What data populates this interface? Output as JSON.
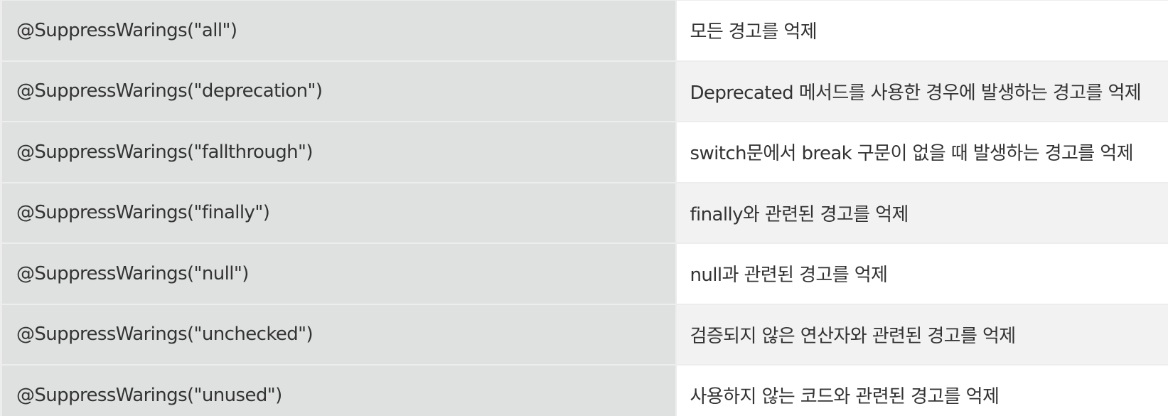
{
  "table": {
    "rows": [
      {
        "annotation": "@SuppressWarings(\"all\")",
        "description": "모든 경고를 억제"
      },
      {
        "annotation": "@SuppressWarings(\"deprecation\")",
        "description": "Deprecated 메서드를 사용한 경우에 발생하는 경고를 억제"
      },
      {
        "annotation": "@SuppressWarings(\"fallthrough\")",
        "description": "switch문에서 break 구문이 없을 때 발생하는 경고를 억제"
      },
      {
        "annotation": "@SuppressWarings(\"finally\")",
        "description": "finally와 관련된 경고를 억제"
      },
      {
        "annotation": "@SuppressWarings(\"null\")",
        "description": "null과 관련된 경고를 억제"
      },
      {
        "annotation": "@SuppressWarings(\"unchecked\")",
        "description": "검증되지 않은 연산자와 관련된 경고를 억제"
      },
      {
        "annotation": "@SuppressWarings(\"unused\")",
        "description": "사용하지 않는 코드와 관련된 경고를 억제"
      }
    ]
  }
}
